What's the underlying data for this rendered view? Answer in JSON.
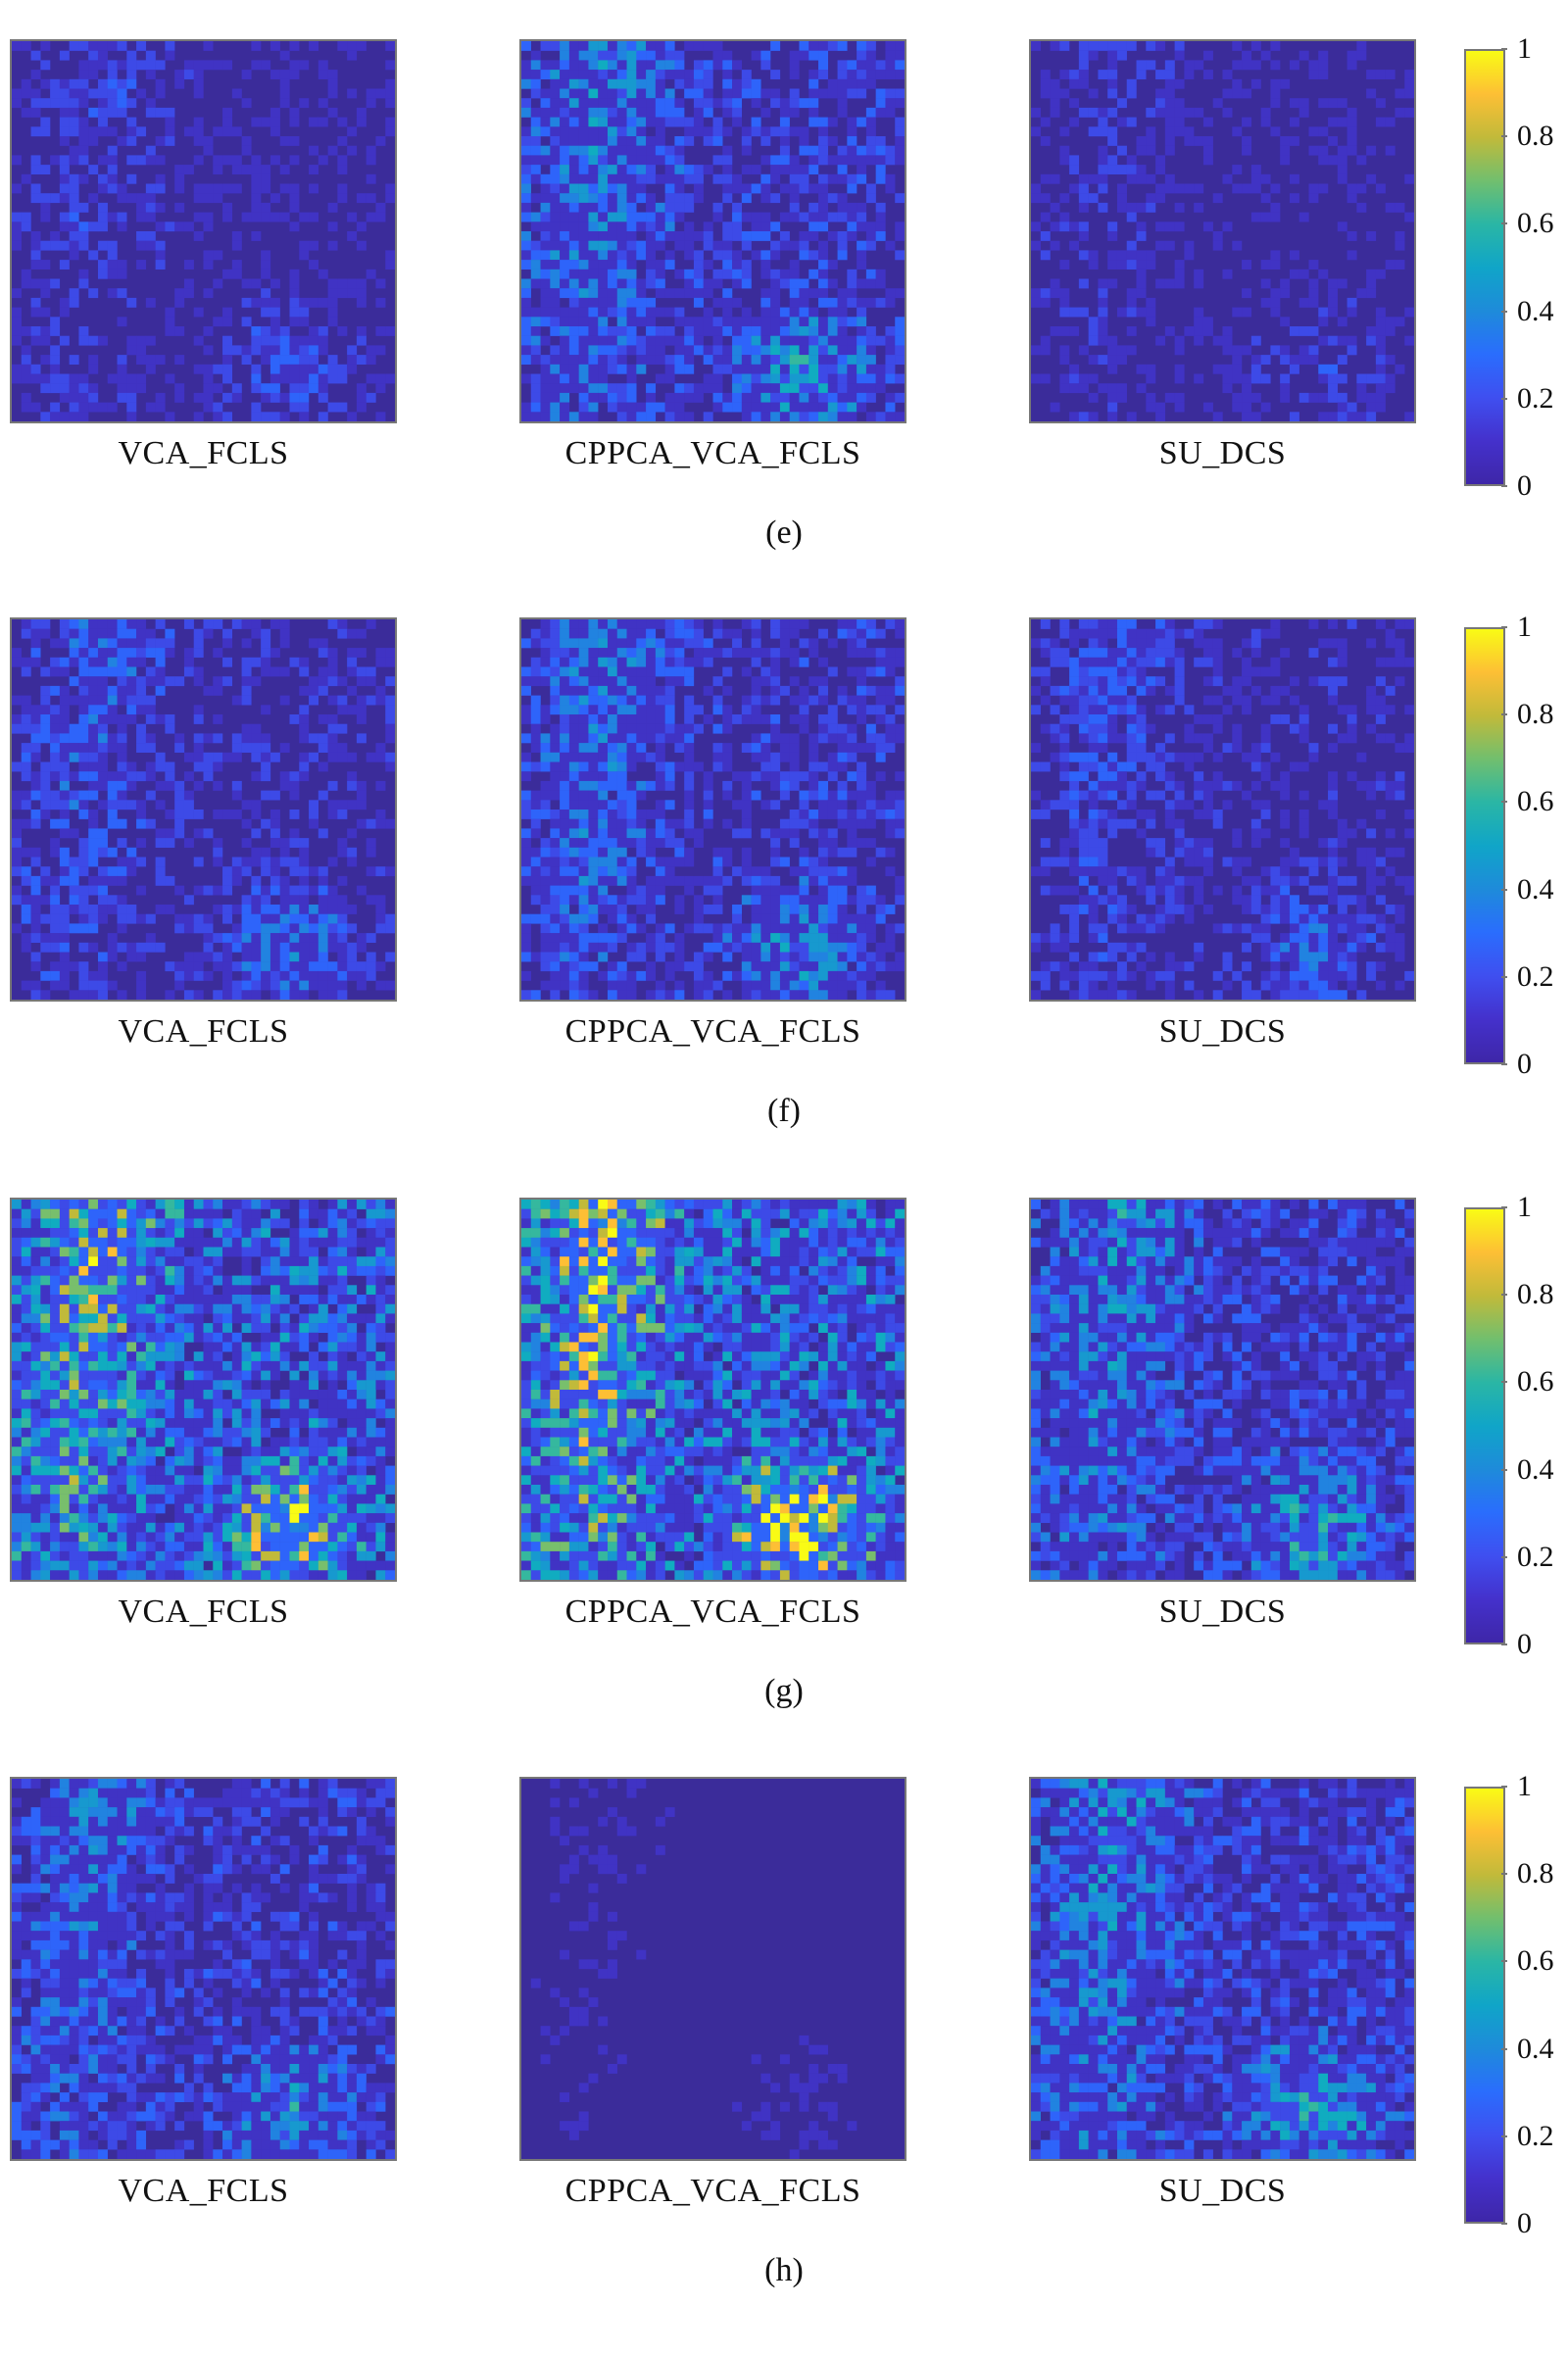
{
  "panels": [
    {
      "label": "(e)",
      "maps": [
        {
          "method": "VCA_FCLS"
        },
        {
          "method": "CPPCA_VCA_FCLS"
        },
        {
          "method": "SU_DCS"
        }
      ]
    },
    {
      "label": "(f)",
      "maps": [
        {
          "method": "VCA_FCLS"
        },
        {
          "method": "CPPCA_VCA_FCLS"
        },
        {
          "method": "SU_DCS"
        }
      ]
    },
    {
      "label": "(g)",
      "maps": [
        {
          "method": "VCA_FCLS"
        },
        {
          "method": "CPPCA_VCA_FCLS"
        },
        {
          "method": "SU_DCS"
        }
      ]
    },
    {
      "label": "(h)",
      "maps": [
        {
          "method": "VCA_FCLS"
        },
        {
          "method": "CPPCA_VCA_FCLS"
        },
        {
          "method": "SU_DCS"
        }
      ]
    }
  ],
  "colorbar": {
    "ticks": [
      "0",
      "0.2",
      "0.4",
      "0.6",
      "0.8",
      "1"
    ],
    "colormap": "parula",
    "colors": [
      "#3e26a8",
      "#2a6dfd",
      "#10a5c8",
      "#71bf6e",
      "#fdbf35",
      "#f9fb15"
    ]
  }
}
